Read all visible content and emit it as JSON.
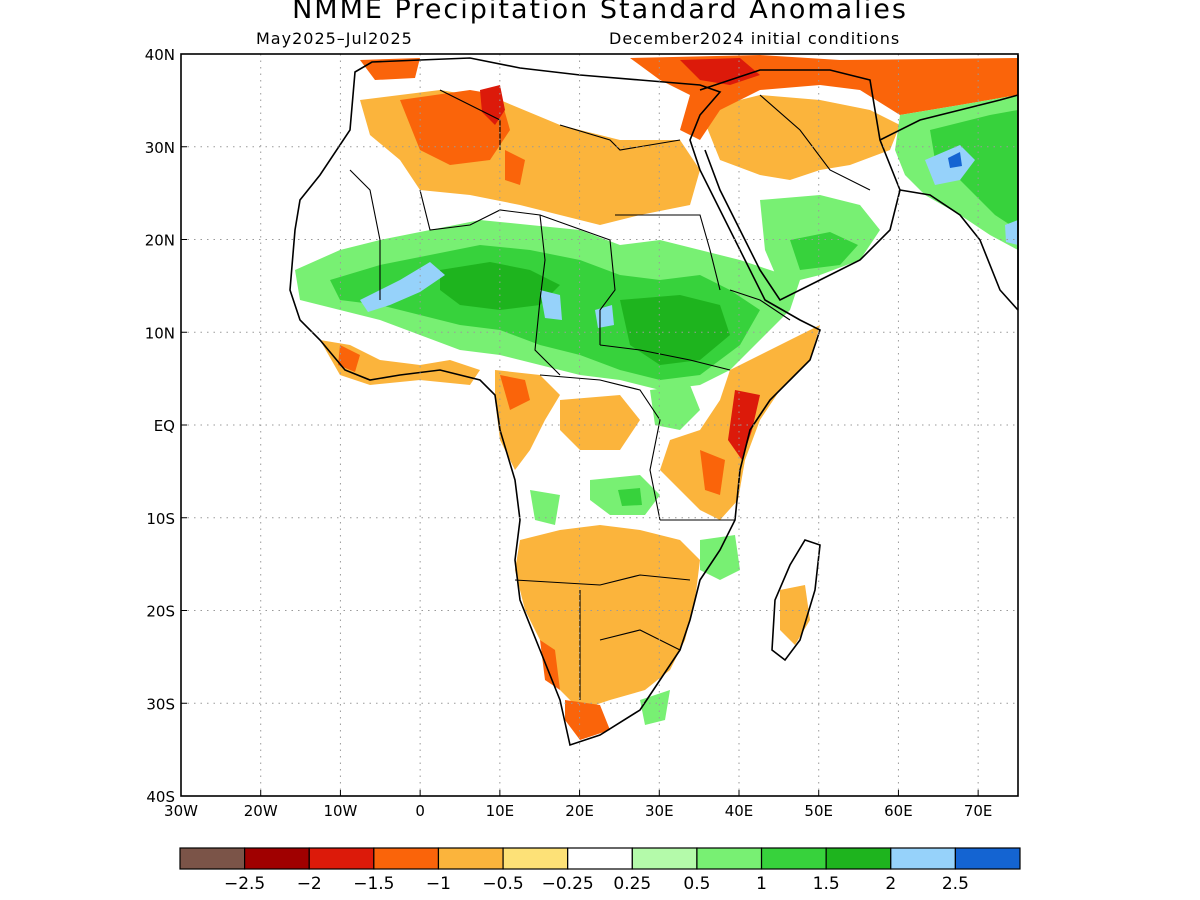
{
  "title": "NMME Precipitation Standard Anomalies",
  "subtitle_left": "May2025–Jul2025",
  "subtitle_right": "December2024 initial conditions",
  "map": {
    "lon_range": [
      -30,
      75
    ],
    "lat_range": [
      -40,
      40
    ],
    "lat_ticks": [
      {
        "value": 40,
        "label": "40N"
      },
      {
        "value": 30,
        "label": "30N"
      },
      {
        "value": 20,
        "label": "20N"
      },
      {
        "value": 10,
        "label": "10N"
      },
      {
        "value": 0,
        "label": "EQ"
      },
      {
        "value": -10,
        "label": "10S"
      },
      {
        "value": -20,
        "label": "20S"
      },
      {
        "value": -30,
        "label": "30S"
      },
      {
        "value": -40,
        "label": "40S"
      }
    ],
    "lon_ticks": [
      {
        "value": -30,
        "label": "30W"
      },
      {
        "value": -20,
        "label": "20W"
      },
      {
        "value": -10,
        "label": "10W"
      },
      {
        "value": 0,
        "label": "0"
      },
      {
        "value": 10,
        "label": "10E"
      },
      {
        "value": 20,
        "label": "20E"
      },
      {
        "value": 30,
        "label": "30E"
      },
      {
        "value": 40,
        "label": "40E"
      },
      {
        "value": 50,
        "label": "50E"
      },
      {
        "value": 60,
        "label": "60E"
      },
      {
        "value": 70,
        "label": "70E"
      }
    ],
    "grid": true
  },
  "colorbar": {
    "colors": [
      "#7b5448",
      "#a00000",
      "#dc1a0a",
      "#fa640a",
      "#fbb43c",
      "#fde177",
      "#ffffff",
      "#b4faaa",
      "#78f073",
      "#37d23c",
      "#1eb41e",
      "#96d2fa",
      "#1464d2"
    ],
    "labels": [
      "−2.5",
      "−2",
      "−1.5",
      "−1",
      "−0.5",
      "−0.25",
      "0.25",
      "0.5",
      "1",
      "1.5",
      "2",
      "2.5"
    ]
  }
}
